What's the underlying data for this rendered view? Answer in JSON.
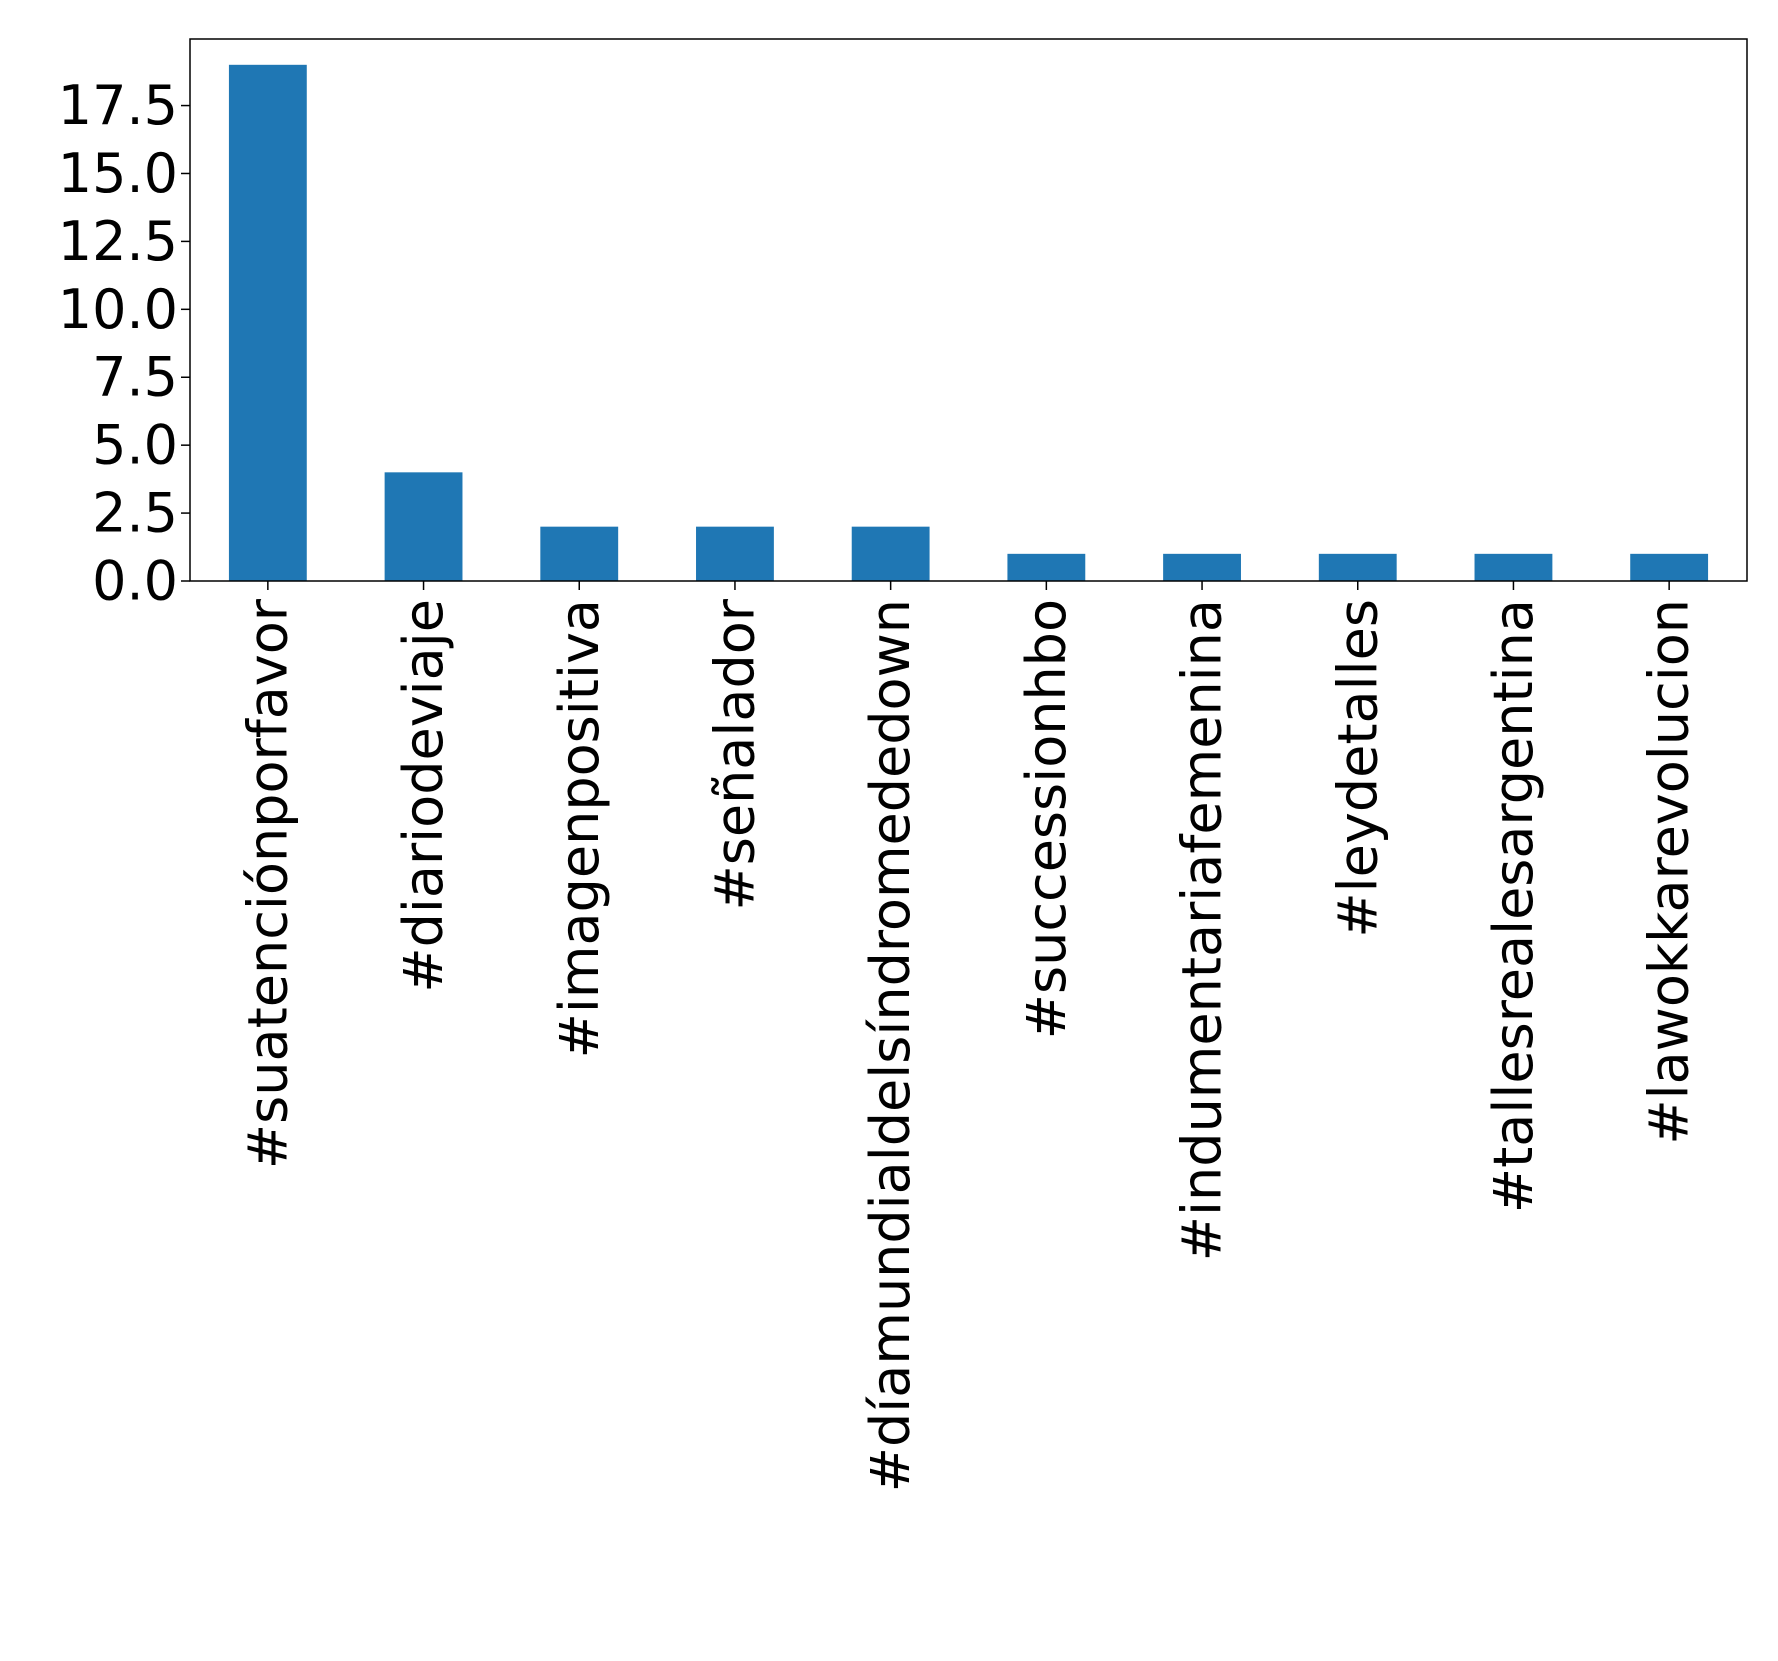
{
  "chart_data": {
    "type": "bar",
    "title": "",
    "xlabel": "",
    "ylabel": "",
    "categories": [
      "#suatenciónporfavor",
      "#diariodeviaje",
      "#imagenpositiva",
      "#señalador",
      "#díamundialdelsíndromededown",
      "#successionhbo",
      "#indumentariafemenina",
      "#leydetalles",
      "#tallesrealesargentina",
      "#lawokkarevolucion"
    ],
    "values": [
      19,
      4,
      2,
      2,
      2,
      1,
      1,
      1,
      1,
      1
    ],
    "ylim": [
      0,
      19.95
    ],
    "yticks": [
      "0.0",
      "2.5",
      "5.0",
      "7.5",
      "10.0",
      "12.5",
      "15.0",
      "17.5"
    ],
    "bar_color": "#1f77b4",
    "grid": false,
    "legend": "none",
    "x_tick_rotation": "vertical"
  }
}
